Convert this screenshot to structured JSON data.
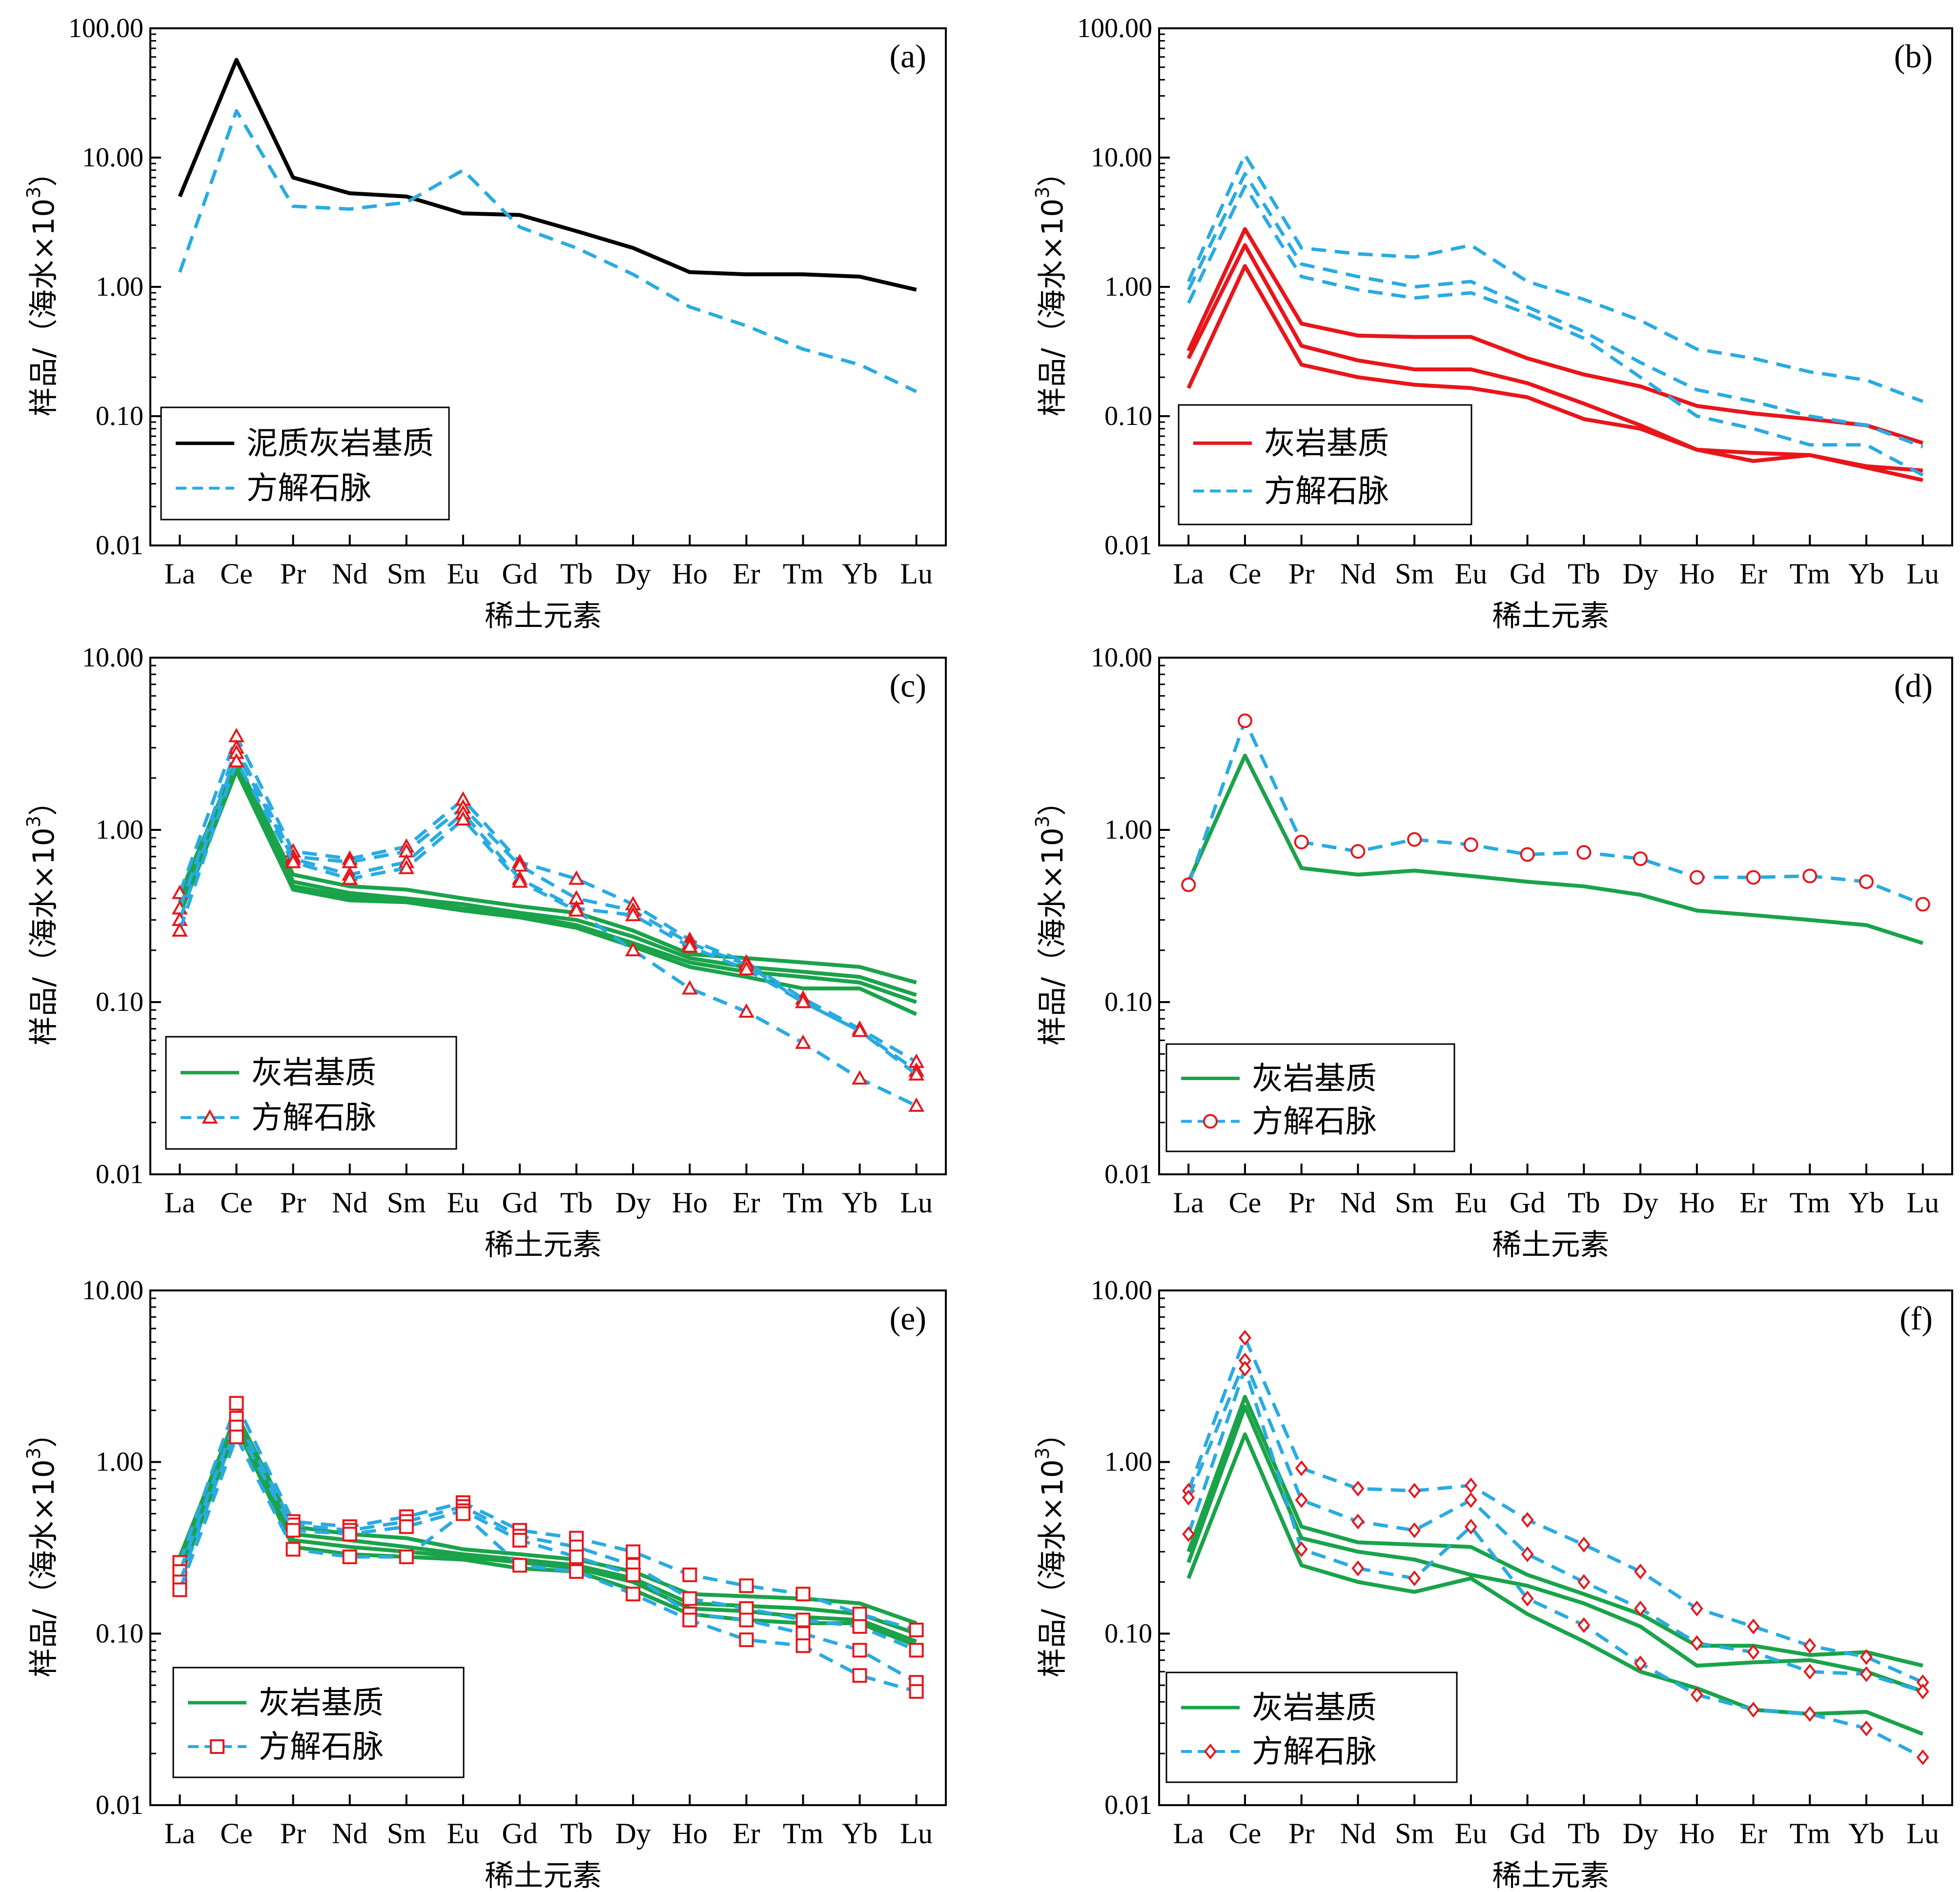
{
  "colors": {
    "black": "#000000",
    "cyan": "#29abe2",
    "red": "#e8161b",
    "green": "#1aa34a",
    "marker": "#e8161b"
  },
  "chart_data": [
    {
      "panel": "(a)",
      "type": "line",
      "y_scale": "log",
      "ylim": [
        0.01,
        100
      ],
      "yticks": [
        "100.00",
        "10.00",
        "1.00",
        "0.10",
        "0.01"
      ],
      "categories": [
        "La",
        "Ce",
        "Pr",
        "Nd",
        "Sm",
        "Eu",
        "Gd",
        "Tb",
        "Dy",
        "Ho",
        "Er",
        "Tm",
        "Yb",
        "Lu"
      ],
      "xlabel": "稀土元素",
      "ylabel": "样品/（海水×10",
      "ylabel_sup": "3",
      "ylabel_end": "）",
      "legend": {
        "position": "bottom-left",
        "entries": [
          {
            "label": "泥质灰岩基质",
            "color_key": "black",
            "dash": false,
            "marker": "none"
          },
          {
            "label": "方解石脉",
            "color_key": "cyan",
            "dash": true,
            "marker": "none"
          }
        ]
      },
      "series": [
        {
          "color_key": "black",
          "dash": false,
          "marker": "none",
          "values": [
            5.0,
            57,
            7.0,
            5.3,
            5.0,
            3.7,
            3.6,
            2.7,
            2.0,
            1.3,
            1.25,
            1.25,
            1.2,
            0.95
          ]
        },
        {
          "color_key": "cyan",
          "dash": true,
          "marker": "none",
          "values": [
            1.3,
            23,
            4.2,
            4.0,
            4.5,
            8.0,
            2.9,
            2.0,
            1.25,
            0.7,
            0.5,
            0.33,
            0.25,
            0.155
          ]
        }
      ]
    },
    {
      "panel": "(b)",
      "type": "line",
      "y_scale": "log",
      "ylim": [
        0.01,
        100
      ],
      "yticks": [
        "100.00",
        "10.00",
        "1.00",
        "0.10",
        "0.01"
      ],
      "categories": [
        "La",
        "Ce",
        "Pr",
        "Nd",
        "Sm",
        "Eu",
        "Gd",
        "Tb",
        "Dy",
        "Ho",
        "Er",
        "Tm",
        "Yb",
        "Lu"
      ],
      "xlabel": "稀土元素",
      "ylabel": "样品/（海水×10",
      "ylabel_sup": "3",
      "ylabel_end": "）",
      "legend": {
        "position": "bottom-left",
        "entries": [
          {
            "label": "灰岩基质",
            "color_key": "red",
            "dash": false,
            "marker": "none"
          },
          {
            "label": "方解石脉",
            "color_key": "cyan",
            "dash": true,
            "marker": "none"
          }
        ]
      },
      "series": [
        {
          "color_key": "red",
          "dash": false,
          "marker": "none",
          "values": [
            0.32,
            2.8,
            0.52,
            0.42,
            0.41,
            0.41,
            0.28,
            0.21,
            0.17,
            0.12,
            0.105,
            0.095,
            0.085,
            0.062
          ]
        },
        {
          "color_key": "red",
          "dash": false,
          "marker": "none",
          "values": [
            0.28,
            2.1,
            0.35,
            0.27,
            0.23,
            0.23,
            0.18,
            0.125,
            0.085,
            0.055,
            0.052,
            0.05,
            0.041,
            0.038
          ]
        },
        {
          "color_key": "red",
          "dash": false,
          "marker": "none",
          "values": [
            0.165,
            1.45,
            0.25,
            0.2,
            0.175,
            0.165,
            0.14,
            0.095,
            0.08,
            0.055,
            0.045,
            0.05,
            0.04,
            0.032
          ]
        },
        {
          "color_key": "cyan",
          "dash": true,
          "marker": "none",
          "values": [
            1.1,
            10.5,
            2.0,
            1.8,
            1.7,
            2.1,
            1.1,
            0.8,
            0.55,
            0.33,
            0.28,
            0.22,
            0.19,
            0.13
          ]
        },
        {
          "color_key": "cyan",
          "dash": true,
          "marker": "none",
          "values": [
            0.95,
            7.5,
            1.5,
            1.2,
            1.0,
            1.1,
            0.7,
            0.45,
            0.26,
            0.16,
            0.13,
            0.1,
            0.085,
            0.058
          ]
        },
        {
          "color_key": "cyan",
          "dash": true,
          "marker": "none",
          "values": [
            0.75,
            6.0,
            1.2,
            0.95,
            0.82,
            0.9,
            0.62,
            0.4,
            0.2,
            0.1,
            0.08,
            0.06,
            0.06,
            0.035
          ]
        }
      ]
    },
    {
      "panel": "(c)",
      "type": "line",
      "y_scale": "log",
      "ylim": [
        0.01,
        10
      ],
      "yticks": [
        "10.00",
        "1.00",
        "0.10",
        "0.01"
      ],
      "categories": [
        "La",
        "Ce",
        "Pr",
        "Nd",
        "Sm",
        "Eu",
        "Gd",
        "Tb",
        "Dy",
        "Ho",
        "Er",
        "Tm",
        "Yb",
        "Lu"
      ],
      "xlabel": "稀土元素",
      "ylabel": "样品/（海水×10",
      "ylabel_sup": "3",
      "ylabel_end": "）",
      "legend": {
        "position": "bottom-left",
        "entries": [
          {
            "label": "灰岩基质",
            "color_key": "green",
            "dash": false,
            "marker": "none"
          },
          {
            "label": "方解石脉",
            "color_key": "cyan",
            "dash": true,
            "marker": "triangle"
          }
        ]
      },
      "series": [
        {
          "color_key": "green",
          "dash": false,
          "marker": "none",
          "values": [
            0.42,
            2.5,
            0.55,
            0.47,
            0.45,
            0.4,
            0.36,
            0.33,
            0.26,
            0.19,
            0.18,
            0.17,
            0.16,
            0.13
          ]
        },
        {
          "color_key": "green",
          "dash": false,
          "marker": "none",
          "values": [
            0.38,
            2.4,
            0.5,
            0.43,
            0.4,
            0.37,
            0.33,
            0.3,
            0.24,
            0.18,
            0.16,
            0.15,
            0.14,
            0.11
          ]
        },
        {
          "color_key": "green",
          "dash": false,
          "marker": "none",
          "values": [
            0.35,
            2.3,
            0.47,
            0.41,
            0.39,
            0.35,
            0.32,
            0.28,
            0.22,
            0.17,
            0.15,
            0.14,
            0.13,
            0.1
          ]
        },
        {
          "color_key": "green",
          "dash": false,
          "marker": "none",
          "values": [
            0.32,
            2.2,
            0.45,
            0.39,
            0.38,
            0.34,
            0.31,
            0.27,
            0.21,
            0.16,
            0.14,
            0.12,
            0.12,
            0.085
          ]
        },
        {
          "color_key": "cyan",
          "dash": true,
          "marker": "triangle",
          "values": [
            0.43,
            3.5,
            0.75,
            0.68,
            0.8,
            1.5,
            0.65,
            0.52,
            0.37,
            0.23,
            0.17,
            0.105,
            0.07,
            0.045
          ]
        },
        {
          "color_key": "cyan",
          "dash": true,
          "marker": "triangle",
          "values": [
            0.35,
            3.0,
            0.7,
            0.65,
            0.75,
            1.35,
            0.62,
            0.4,
            0.34,
            0.22,
            0.165,
            0.1,
            0.068,
            0.04
          ]
        },
        {
          "color_key": "cyan",
          "dash": true,
          "marker": "triangle",
          "values": [
            0.3,
            2.8,
            0.68,
            0.55,
            0.65,
            1.25,
            0.52,
            0.35,
            0.32,
            0.21,
            0.155,
            0.1,
            0.068,
            0.038
          ]
        },
        {
          "color_key": "cyan",
          "dash": true,
          "marker": "triangle",
          "values": [
            0.26,
            2.5,
            0.65,
            0.52,
            0.6,
            1.15,
            0.5,
            0.34,
            0.2,
            0.12,
            0.088,
            0.058,
            0.036,
            0.025
          ]
        }
      ]
    },
    {
      "panel": "(d)",
      "type": "line",
      "y_scale": "log",
      "ylim": [
        0.01,
        10
      ],
      "yticks": [
        "10.00",
        "1.00",
        "0.10",
        "0.01"
      ],
      "categories": [
        "La",
        "Ce",
        "Pr",
        "Nd",
        "Sm",
        "Eu",
        "Gd",
        "Tb",
        "Dy",
        "Ho",
        "Er",
        "Tm",
        "Yb",
        "Lu"
      ],
      "xlabel": "稀土元素",
      "ylabel": "样品/（海水×10",
      "ylabel_sup": "3",
      "ylabel_end": "）",
      "legend": {
        "position": "bottom-left",
        "entries": [
          {
            "label": "灰岩基质",
            "color_key": "green",
            "dash": false,
            "marker": "none"
          },
          {
            "label": "方解石脉",
            "color_key": "cyan",
            "dash": true,
            "marker": "circle"
          }
        ]
      },
      "series": [
        {
          "color_key": "green",
          "dash": false,
          "marker": "none",
          "values": [
            0.5,
            2.7,
            0.6,
            0.55,
            0.58,
            0.54,
            0.5,
            0.47,
            0.42,
            0.34,
            0.32,
            0.3,
            0.28,
            0.22
          ]
        },
        {
          "color_key": "cyan",
          "dash": true,
          "marker": "circle",
          "values": [
            0.48,
            4.3,
            0.85,
            0.75,
            0.88,
            0.82,
            0.72,
            0.74,
            0.68,
            0.53,
            0.53,
            0.54,
            0.5,
            0.37
          ]
        }
      ]
    },
    {
      "panel": "(e)",
      "type": "line",
      "y_scale": "log",
      "ylim": [
        0.01,
        10
      ],
      "yticks": [
        "10.00",
        "1.00",
        "0.10",
        "0.01"
      ],
      "categories": [
        "La",
        "Ce",
        "Pr",
        "Nd",
        "Sm",
        "Eu",
        "Gd",
        "Tb",
        "Dy",
        "Ho",
        "Er",
        "Tm",
        "Yb",
        "Lu"
      ],
      "xlabel": "稀土元素",
      "ylabel": "样品/（海水×10",
      "ylabel_sup": "3",
      "ylabel_end": "）",
      "legend": {
        "position": "bottom-left",
        "entries": [
          {
            "label": "灰岩基质",
            "color_key": "green",
            "dash": false,
            "marker": "none"
          },
          {
            "label": "方解石脉",
            "color_key": "cyan",
            "dash": true,
            "marker": "square"
          }
        ]
      },
      "series": [
        {
          "color_key": "green",
          "dash": false,
          "marker": "none",
          "values": [
            0.28,
            1.9,
            0.42,
            0.38,
            0.36,
            0.31,
            0.29,
            0.27,
            0.23,
            0.17,
            0.165,
            0.16,
            0.15,
            0.115
          ]
        },
        {
          "color_key": "green",
          "dash": false,
          "marker": "none",
          "values": [
            0.25,
            1.8,
            0.38,
            0.35,
            0.32,
            0.29,
            0.27,
            0.25,
            0.21,
            0.15,
            0.145,
            0.14,
            0.13,
            0.1
          ]
        },
        {
          "color_key": "green",
          "dash": false,
          "marker": "none",
          "values": [
            0.23,
            1.7,
            0.35,
            0.32,
            0.3,
            0.28,
            0.26,
            0.24,
            0.2,
            0.14,
            0.135,
            0.125,
            0.12,
            0.09
          ]
        },
        {
          "color_key": "green",
          "dash": false,
          "marker": "none",
          "values": [
            0.21,
            1.6,
            0.32,
            0.29,
            0.28,
            0.27,
            0.24,
            0.23,
            0.18,
            0.13,
            0.12,
            0.115,
            0.115,
            0.085
          ]
        },
        {
          "color_key": "cyan",
          "dash": true,
          "marker": "square",
          "values": [
            0.26,
            2.2,
            0.45,
            0.42,
            0.48,
            0.58,
            0.4,
            0.36,
            0.3,
            0.22,
            0.19,
            0.17,
            0.13,
            0.105
          ]
        },
        {
          "color_key": "cyan",
          "dash": true,
          "marker": "square",
          "values": [
            0.23,
            1.8,
            0.43,
            0.4,
            0.45,
            0.55,
            0.37,
            0.32,
            0.25,
            0.16,
            0.14,
            0.12,
            0.11,
            0.08
          ]
        },
        {
          "color_key": "cyan",
          "dash": true,
          "marker": "square",
          "values": [
            0.2,
            1.6,
            0.4,
            0.38,
            0.42,
            0.52,
            0.35,
            0.28,
            0.22,
            0.13,
            0.12,
            0.1,
            0.08,
            0.052
          ]
        },
        {
          "color_key": "cyan",
          "dash": true,
          "marker": "square",
          "values": [
            0.18,
            1.4,
            0.31,
            0.28,
            0.28,
            0.5,
            0.25,
            0.23,
            0.17,
            0.12,
            0.092,
            0.085,
            0.057,
            0.046
          ]
        }
      ]
    },
    {
      "panel": "(f)",
      "type": "line",
      "y_scale": "log",
      "ylim": [
        0.01,
        10
      ],
      "yticks": [
        "10.00",
        "1.00",
        "0.10",
        "0.01"
      ],
      "categories": [
        "La",
        "Ce",
        "Pr",
        "Nd",
        "Sm",
        "Eu",
        "Gd",
        "Tb",
        "Dy",
        "Ho",
        "Er",
        "Tm",
        "Yb",
        "Lu"
      ],
      "xlabel": "稀土元素",
      "ylabel": "样品/（海水×10",
      "ylabel_sup": "3",
      "ylabel_end": "）",
      "legend": {
        "position": "bottom-left",
        "entries": [
          {
            "label": "灰岩基质",
            "color_key": "green",
            "dash": false,
            "marker": "none"
          },
          {
            "label": "方解石脉",
            "color_key": "cyan",
            "dash": true,
            "marker": "diamond"
          }
        ]
      },
      "series": [
        {
          "color_key": "green",
          "dash": false,
          "marker": "none",
          "values": [
            0.3,
            2.4,
            0.42,
            0.34,
            0.33,
            0.32,
            0.22,
            0.17,
            0.13,
            0.085,
            0.085,
            0.075,
            0.078,
            0.065
          ]
        },
        {
          "color_key": "green",
          "dash": false,
          "marker": "none",
          "values": [
            0.26,
            2.1,
            0.36,
            0.3,
            0.27,
            0.22,
            0.19,
            0.15,
            0.11,
            0.065,
            0.068,
            0.07,
            0.06,
            0.046
          ]
        },
        {
          "color_key": "green",
          "dash": false,
          "marker": "none",
          "values": [
            0.21,
            1.45,
            0.25,
            0.2,
            0.175,
            0.21,
            0.13,
            0.09,
            0.06,
            0.048,
            0.036,
            0.034,
            0.035,
            0.026
          ]
        },
        {
          "color_key": "cyan",
          "dash": true,
          "marker": "diamond",
          "values": [
            0.68,
            5.3,
            0.92,
            0.7,
            0.68,
            0.73,
            0.46,
            0.33,
            0.23,
            0.14,
            0.11,
            0.085,
            0.073,
            0.052
          ]
        },
        {
          "color_key": "cyan",
          "dash": true,
          "marker": "diamond",
          "values": [
            0.62,
            3.9,
            0.6,
            0.45,
            0.4,
            0.6,
            0.29,
            0.2,
            0.14,
            0.088,
            0.078,
            0.06,
            0.058,
            0.046
          ]
        },
        {
          "color_key": "cyan",
          "dash": true,
          "marker": "diamond",
          "values": [
            0.38,
            3.5,
            0.31,
            0.24,
            0.21,
            0.42,
            0.16,
            0.112,
            0.067,
            0.044,
            0.036,
            0.034,
            0.028,
            0.019
          ]
        }
      ]
    }
  ]
}
